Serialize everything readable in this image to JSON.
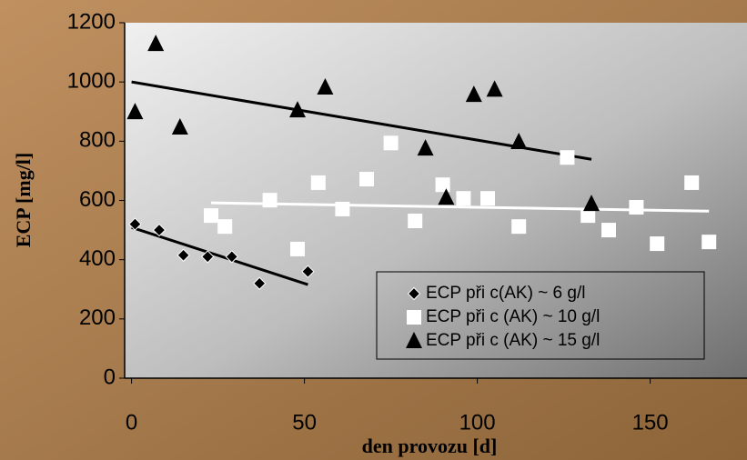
{
  "chart_data": {
    "type": "scatter",
    "xlabel": "den provozu [d]",
    "ylabel": "ECP [mg/l]",
    "xlim": [
      -2,
      178
    ],
    "xticks": [
      0,
      50,
      100,
      150
    ],
    "ylim": [
      0,
      1200
    ],
    "yticks": [
      0,
      200,
      400,
      600,
      800,
      1000,
      1200
    ],
    "legend": "lower right",
    "series": [
      {
        "name": "ECP při c(AK) ~ 6 g/l",
        "color": "#000000",
        "marker": "diamond",
        "x": [
          1,
          8,
          15,
          22,
          29,
          37,
          51
        ],
        "values": [
          520,
          500,
          415,
          410,
          410,
          320,
          360
        ],
        "trend": {
          "x": [
            0,
            51
          ],
          "values": [
            509,
            316
          ],
          "color": "#000000"
        }
      },
      {
        "name": "ECP při c (AK) ~ 10 g/l",
        "color": "#ffffff",
        "marker": "square",
        "x": [
          23,
          27,
          40,
          48,
          54,
          61,
          68,
          75,
          82,
          90,
          96,
          103,
          112,
          126,
          132,
          138,
          146,
          152,
          162,
          167
        ],
        "values": [
          549,
          512,
          601,
          436,
          660,
          571,
          672,
          794,
          531,
          653,
          607,
          607,
          512,
          745,
          549,
          500,
          577,
          454,
          660,
          460
        ],
        "trend": {
          "x": [
            23,
            167
          ],
          "values": [
            592,
            564
          ],
          "color": "#ffffff"
        }
      },
      {
        "name": "ECP při c (AK) ~ 15 g/l",
        "color": "#000000",
        "marker": "triangle",
        "x": [
          1,
          7,
          14,
          48,
          56,
          85,
          91,
          99,
          105,
          112,
          133
        ],
        "values": [
          899,
          1129,
          847,
          905,
          982,
          776,
          610,
          957,
          975,
          798,
          589
        ],
        "trend": {
          "x": [
            0,
            133
          ],
          "values": [
            1000,
            739
          ],
          "color": "#000000"
        }
      }
    ]
  }
}
